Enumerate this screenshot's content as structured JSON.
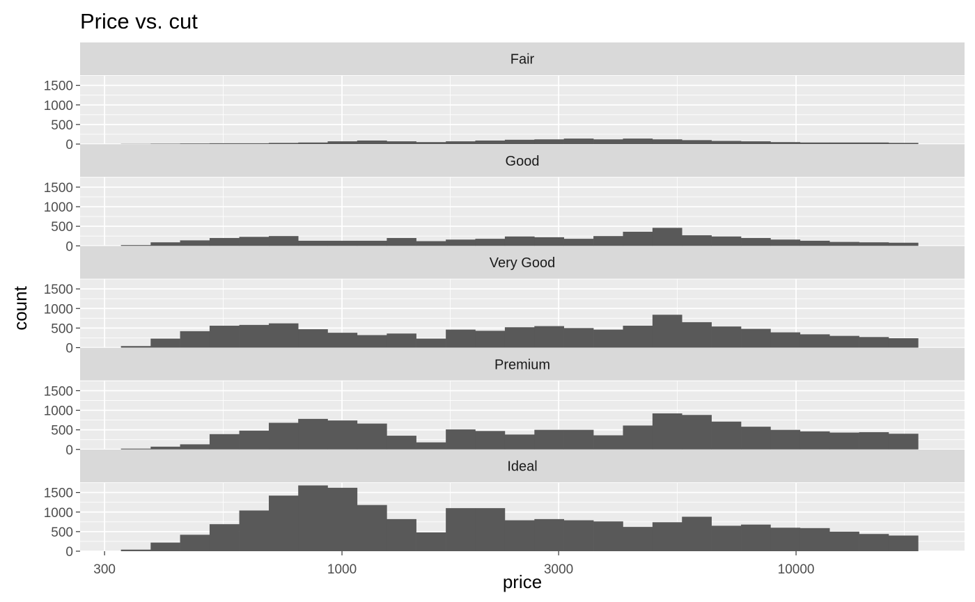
{
  "chart_data": {
    "type": "histogram",
    "title": "Price vs. cut",
    "xlabel": "price",
    "ylabel": "count",
    "x_scale": "log10",
    "xlim": [
      265,
      23500
    ],
    "ylim": [
      0,
      1760
    ],
    "x_ticks": [
      300,
      1000,
      3000,
      10000
    ],
    "x_tick_labels": [
      "300",
      "1000",
      "3000",
      "10000"
    ],
    "y_ticks": [
      0,
      500,
      1000,
      1500
    ],
    "y_tick_labels": [
      "0",
      "500",
      "1000",
      "1500"
    ],
    "bar_color": "#595959",
    "panel_background": "#ebebeb",
    "strip_background": "#d9d9d9",
    "grid": true,
    "bin_edges": [
      326,
      379,
      440,
      511,
      594,
      690,
      801,
      930,
      1080,
      1255,
      1457,
      1693,
      1966,
      2284,
      2653,
      3081,
      3579,
      4157,
      4828,
      5607,
      6513,
      7565,
      8786,
      10205,
      11853,
      13767,
      15990,
      18572
    ],
    "series": [
      {
        "name": "Fair",
        "values": [
          5,
          10,
          15,
          20,
          20,
          30,
          40,
          70,
          90,
          70,
          50,
          70,
          90,
          110,
          120,
          140,
          120,
          140,
          120,
          100,
          80,
          70,
          50,
          40,
          40,
          40,
          30
        ]
      },
      {
        "name": "Good",
        "values": [
          20,
          90,
          140,
          200,
          230,
          250,
          130,
          130,
          130,
          200,
          120,
          160,
          180,
          240,
          220,
          180,
          250,
          360,
          460,
          270,
          240,
          200,
          160,
          130,
          100,
          90,
          80
        ]
      },
      {
        "name": "Very Good",
        "values": [
          40,
          230,
          420,
          560,
          580,
          620,
          470,
          380,
          320,
          360,
          230,
          460,
          430,
          520,
          550,
          500,
          460,
          560,
          840,
          650,
          540,
          480,
          390,
          340,
          300,
          270,
          240
        ]
      },
      {
        "name": "Premium",
        "values": [
          20,
          70,
          130,
          390,
          480,
          680,
          780,
          740,
          660,
          350,
          180,
          510,
          470,
          380,
          500,
          500,
          360,
          610,
          920,
          880,
          710,
          580,
          500,
          460,
          430,
          440,
          400
        ]
      },
      {
        "name": "Ideal",
        "values": [
          40,
          220,
          420,
          690,
          1040,
          1420,
          1680,
          1620,
          1180,
          820,
          480,
          1100,
          1100,
          790,
          820,
          790,
          760,
          620,
          740,
          880,
          650,
          680,
          600,
          590,
          500,
          440,
          400
        ]
      }
    ]
  }
}
